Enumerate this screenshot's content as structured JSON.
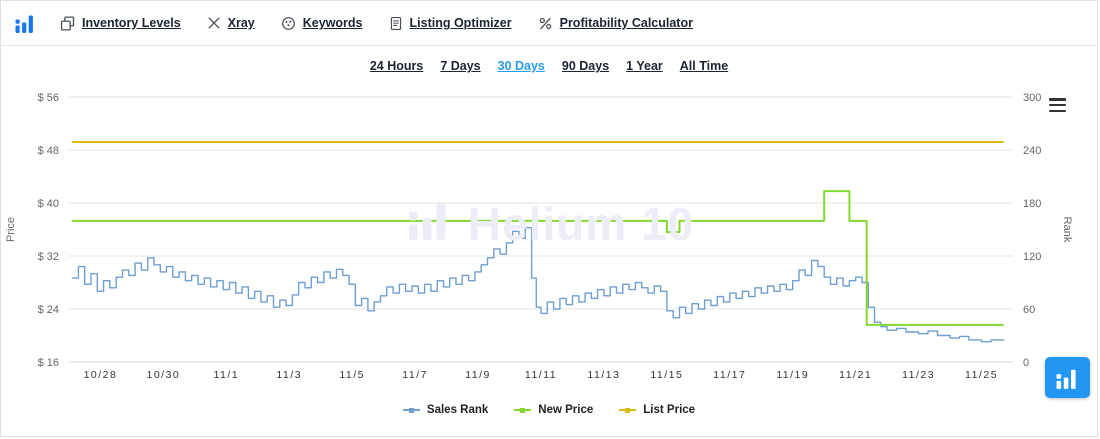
{
  "colors": {
    "accent_blue": "#2b9cf2",
    "fab_blue": "#2196f3",
    "logo_blue": "#1a77f2",
    "sales_rank": "#6f9ed1",
    "new_price": "#83d930",
    "list_price": "#d8ba17",
    "watermark": "#ecedf7"
  },
  "topnav": {
    "items": [
      {
        "label": "Inventory Levels",
        "icon": "inventory-levels-icon"
      },
      {
        "label": "Xray",
        "icon": "xray-icon"
      },
      {
        "label": "Keywords",
        "icon": "keywords-icon"
      },
      {
        "label": "Listing Optimizer",
        "icon": "listing-optimizer-icon"
      },
      {
        "label": "Profitability Calculator",
        "icon": "profitability-calculator-icon"
      }
    ]
  },
  "time_ranges": {
    "options": [
      "24 Hours",
      "7 Days",
      "30 Days",
      "90 Days",
      "1 Year",
      "All Time"
    ],
    "active": "30 Days"
  },
  "chart_data": {
    "type": "line",
    "watermark": "Helium 10",
    "grid": "horizontal",
    "legend_position": "bottom",
    "x_axis": {
      "min": 0,
      "max": 30,
      "ticks": [
        [
          1,
          "10/28"
        ],
        [
          3,
          "10/30"
        ],
        [
          5,
          "11/1"
        ],
        [
          7,
          "11/3"
        ],
        [
          9,
          "11/5"
        ],
        [
          11,
          "11/7"
        ],
        [
          13,
          "11/9"
        ],
        [
          15,
          "11/11"
        ],
        [
          17,
          "11/13"
        ],
        [
          19,
          "11/15"
        ],
        [
          21,
          "11/17"
        ],
        [
          23,
          "11/19"
        ],
        [
          25,
          "11/21"
        ],
        [
          27,
          "11/23"
        ],
        [
          29,
          "11/25"
        ]
      ]
    },
    "left_axis": {
      "title": "Price",
      "min": 16,
      "max": 56,
      "ticks": [
        "$ 56",
        "$ 48",
        "$ 40",
        "$ 32",
        "$ 24",
        "$ 16"
      ]
    },
    "right_axis": {
      "title": "Rank",
      "min": 0,
      "max": 300,
      "ticks": [
        "300",
        "240",
        "180",
        "120",
        "60",
        "0"
      ]
    },
    "series": [
      {
        "name": "Sales Rank",
        "axis": "right",
        "color": "#6f9ed1",
        "width": 1.4,
        "step": true,
        "points": [
          [
            0.1,
            95
          ],
          [
            0.3,
            108
          ],
          [
            0.5,
            88
          ],
          [
            0.7,
            100
          ],
          [
            0.9,
            80
          ],
          [
            1.1,
            92
          ],
          [
            1.3,
            84
          ],
          [
            1.5,
            96
          ],
          [
            1.7,
            104
          ],
          [
            1.9,
            98
          ],
          [
            2.1,
            112
          ],
          [
            2.3,
            104
          ],
          [
            2.5,
            118
          ],
          [
            2.7,
            110
          ],
          [
            2.9,
            102
          ],
          [
            3.1,
            108
          ],
          [
            3.3,
            96
          ],
          [
            3.5,
            102
          ],
          [
            3.7,
            92
          ],
          [
            3.9,
            98
          ],
          [
            4.1,
            88
          ],
          [
            4.3,
            95
          ],
          [
            4.5,
            85
          ],
          [
            4.7,
            92
          ],
          [
            4.9,
            82
          ],
          [
            5.1,
            90
          ],
          [
            5.3,
            78
          ],
          [
            5.5,
            85
          ],
          [
            5.7,
            72
          ],
          [
            5.9,
            80
          ],
          [
            6.1,
            68
          ],
          [
            6.3,
            75
          ],
          [
            6.5,
            62
          ],
          [
            6.7,
            70
          ],
          [
            6.9,
            64
          ],
          [
            7.1,
            76
          ],
          [
            7.3,
            90
          ],
          [
            7.5,
            84
          ],
          [
            7.7,
            96
          ],
          [
            7.9,
            90
          ],
          [
            8.1,
            102
          ],
          [
            8.3,
            95
          ],
          [
            8.5,
            105
          ],
          [
            8.7,
            98
          ],
          [
            8.9,
            88
          ],
          [
            9.1,
            64
          ],
          [
            9.3,
            72
          ],
          [
            9.5,
            58
          ],
          [
            9.7,
            68
          ],
          [
            9.9,
            75
          ],
          [
            10.1,
            85
          ],
          [
            10.3,
            78
          ],
          [
            10.5,
            88
          ],
          [
            10.7,
            80
          ],
          [
            10.9,
            86
          ],
          [
            11.1,
            78
          ],
          [
            11.3,
            88
          ],
          [
            11.5,
            80
          ],
          [
            11.7,
            92
          ],
          [
            11.9,
            85
          ],
          [
            12.1,
            95
          ],
          [
            12.3,
            88
          ],
          [
            12.5,
            98
          ],
          [
            12.7,
            92
          ],
          [
            12.9,
            102
          ],
          [
            13.1,
            110
          ],
          [
            13.3,
            118
          ],
          [
            13.5,
            128
          ],
          [
            13.7,
            122
          ],
          [
            13.9,
            135
          ],
          [
            14.1,
            148
          ],
          [
            14.3,
            140
          ],
          [
            14.5,
            152
          ],
          [
            14.7,
            95
          ],
          [
            14.85,
            62
          ],
          [
            15.0,
            55
          ],
          [
            15.2,
            68
          ],
          [
            15.4,
            60
          ],
          [
            15.6,
            72
          ],
          [
            15.8,
            65
          ],
          [
            16.0,
            75
          ],
          [
            16.2,
            68
          ],
          [
            16.4,
            78
          ],
          [
            16.6,
            72
          ],
          [
            16.8,
            82
          ],
          [
            17.0,
            75
          ],
          [
            17.2,
            85
          ],
          [
            17.4,
            78
          ],
          [
            17.6,
            88
          ],
          [
            17.8,
            82
          ],
          [
            18.0,
            90
          ],
          [
            18.2,
            84
          ],
          [
            18.4,
            78
          ],
          [
            18.6,
            86
          ],
          [
            18.8,
            80
          ],
          [
            19.0,
            58
          ],
          [
            19.2,
            50
          ],
          [
            19.4,
            62
          ],
          [
            19.6,
            55
          ],
          [
            19.8,
            66
          ],
          [
            20.0,
            60
          ],
          [
            20.2,
            70
          ],
          [
            20.4,
            64
          ],
          [
            20.6,
            74
          ],
          [
            20.8,
            68
          ],
          [
            21.0,
            78
          ],
          [
            21.2,
            72
          ],
          [
            21.4,
            80
          ],
          [
            21.6,
            74
          ],
          [
            21.8,
            84
          ],
          [
            22.0,
            78
          ],
          [
            22.2,
            86
          ],
          [
            22.4,
            80
          ],
          [
            22.6,
            88
          ],
          [
            22.8,
            82
          ],
          [
            23.0,
            92
          ],
          [
            23.2,
            104
          ],
          [
            23.4,
            98
          ],
          [
            23.6,
            115
          ],
          [
            23.8,
            108
          ],
          [
            24.0,
            96
          ],
          [
            24.2,
            88
          ],
          [
            24.4,
            95
          ],
          [
            24.6,
            86
          ],
          [
            24.8,
            92
          ],
          [
            25.0,
            96
          ],
          [
            25.2,
            90
          ],
          [
            25.4,
            62
          ],
          [
            25.6,
            45
          ],
          [
            25.8,
            40
          ],
          [
            26.0,
            36
          ],
          [
            26.3,
            38
          ],
          [
            26.6,
            34
          ],
          [
            27.0,
            32
          ],
          [
            27.3,
            35
          ],
          [
            27.6,
            30
          ],
          [
            28.0,
            27
          ],
          [
            28.3,
            29
          ],
          [
            28.6,
            25
          ],
          [
            29.0,
            23
          ],
          [
            29.3,
            25
          ],
          [
            29.7,
            24
          ]
        ]
      },
      {
        "name": "New Price",
        "axis": "left",
        "color": "#83d930",
        "width": 2,
        "points": [
          [
            0.1,
            37.3
          ],
          [
            19.0,
            37.3
          ],
          [
            19.0,
            35.6
          ],
          [
            19.4,
            35.6
          ],
          [
            19.4,
            37.3
          ],
          [
            24.0,
            37.3
          ],
          [
            24.0,
            41.8
          ],
          [
            24.8,
            41.8
          ],
          [
            24.8,
            37.3
          ],
          [
            25.35,
            37.3
          ],
          [
            25.35,
            21.6
          ],
          [
            29.7,
            21.6
          ]
        ]
      },
      {
        "name": "List Price",
        "axis": "left",
        "color": "#d8ba17",
        "width": 2,
        "points": [
          [
            0.1,
            49.2
          ],
          [
            29.7,
            49.2
          ]
        ]
      }
    ]
  }
}
